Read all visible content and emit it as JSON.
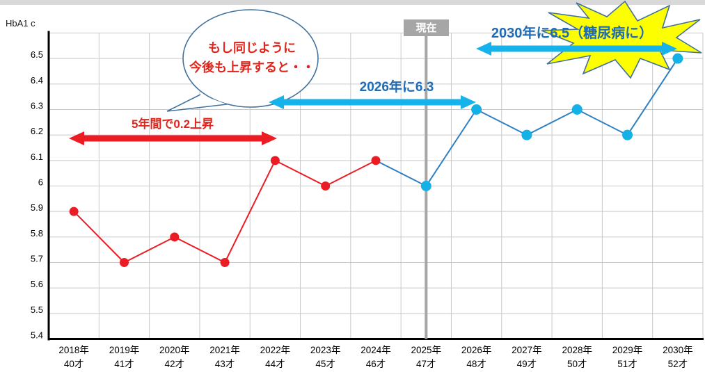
{
  "page": {
    "top_bar_color": "#d9d9d9",
    "background": "#ffffff"
  },
  "chart_data": {
    "type": "line",
    "title": "HbA1 c",
    "categories": [
      {
        "year": "2018年",
        "age": "40才"
      },
      {
        "year": "2019年",
        "age": "41才"
      },
      {
        "year": "2020年",
        "age": "42才"
      },
      {
        "year": "2021年",
        "age": "43才"
      },
      {
        "year": "2022年",
        "age": "44才"
      },
      {
        "year": "2023年",
        "age": "45才"
      },
      {
        "year": "2024年",
        "age": "46才"
      },
      {
        "year": "2025年",
        "age": "47才"
      },
      {
        "year": "2026年",
        "age": "48才"
      },
      {
        "year": "2027年",
        "age": "49才"
      },
      {
        "year": "2028年",
        "age": "50才"
      },
      {
        "year": "2029年",
        "age": "51才"
      },
      {
        "year": "2030年",
        "age": "52才"
      }
    ],
    "values": [
      5.9,
      5.7,
      5.8,
      5.7,
      6.1,
      6.0,
      6.1,
      6.0,
      6.3,
      6.2,
      6.3,
      6.2,
      6.5
    ],
    "past_count": 7,
    "ylim": [
      5.4,
      6.6
    ],
    "ytick_step": 0.1,
    "yticks": [
      {
        "v": 5.4,
        "label": "5.4"
      },
      {
        "v": 5.5,
        "label": "5.5"
      },
      {
        "v": 5.6,
        "label": "5.6"
      },
      {
        "v": 5.7,
        "label": "5.7"
      },
      {
        "v": 5.8,
        "label": "5.8"
      },
      {
        "v": 5.9,
        "label": "5.9"
      },
      {
        "v": 6.0,
        "label": "6"
      },
      {
        "v": 6.1,
        "label": "6.1"
      },
      {
        "v": 6.2,
        "label": "6.2"
      },
      {
        "v": 6.3,
        "label": "6.3"
      },
      {
        "v": 6.4,
        "label": "6.4"
      },
      {
        "v": 6.5,
        "label": "6.5"
      }
    ],
    "grid": true,
    "legend": "none",
    "colors": {
      "past": "#ec1c24",
      "future_line": "#2e7fc2",
      "future_marker": "#14b1e7",
      "grid": "#c9c9c9",
      "axis": "#000000",
      "current": "#a6a6a6",
      "current_box_text": "#ffffff",
      "red_text": "#e0251c",
      "blue_text": "#1f6cb5",
      "cyan_arrow": "#16b2ec",
      "red_arrow": "#ec1c24",
      "bubble_outline": "#41719c",
      "starburst_fill": "#fdff00",
      "starburst_outline": "#41719c"
    },
    "annotations": {
      "current_label": "現在",
      "bubble_line1": "もし同じように",
      "bubble_line2": "今後も上昇すると・・",
      "red_arrow_label": "5年間で0.2上昇",
      "arrow_2026_label": "2026年に6.3",
      "arrow_2030_label": "2030年に6.5（糖尿病に）"
    }
  }
}
